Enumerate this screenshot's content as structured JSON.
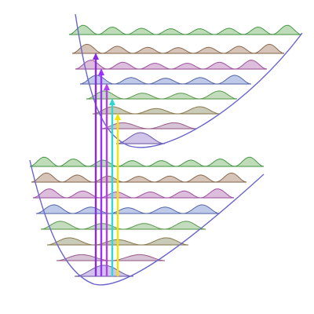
{
  "diagram": {
    "type": "franck-condon-vibronic-transitions",
    "colors": {
      "potential_curve": "#6a66cc",
      "level_line": "#c8c8c8",
      "level_fills": [
        "#c0b0e0",
        "#c8b0c8",
        "#b8b8a0",
        "#b0d0a8",
        "#a8b8e0",
        "#d0a8d0",
        "#c8b0a0",
        "#a8d0a0"
      ],
      "level_edges": [
        "#6a56a8",
        "#9a5a8a",
        "#8a7a4a",
        "#5a9a4a",
        "#5566aa",
        "#a050a0",
        "#8a6a50",
        "#4a9a4a"
      ],
      "arrow_colors": [
        "#8a2be2",
        "#9b30ff",
        "#b040f0",
        "#33d6d6",
        "#f2e600"
      ]
    },
    "lower_state": {
      "level_count": 8
    },
    "upper_state": {
      "level_count": 8
    },
    "transitions": [
      {
        "color_index": 0,
        "to_level": 6
      },
      {
        "color_index": 1,
        "to_level": 5
      },
      {
        "color_index": 2,
        "to_level": 4
      },
      {
        "color_index": 3,
        "to_level": 3
      },
      {
        "color_index": 4,
        "to_level": 2
      }
    ]
  }
}
